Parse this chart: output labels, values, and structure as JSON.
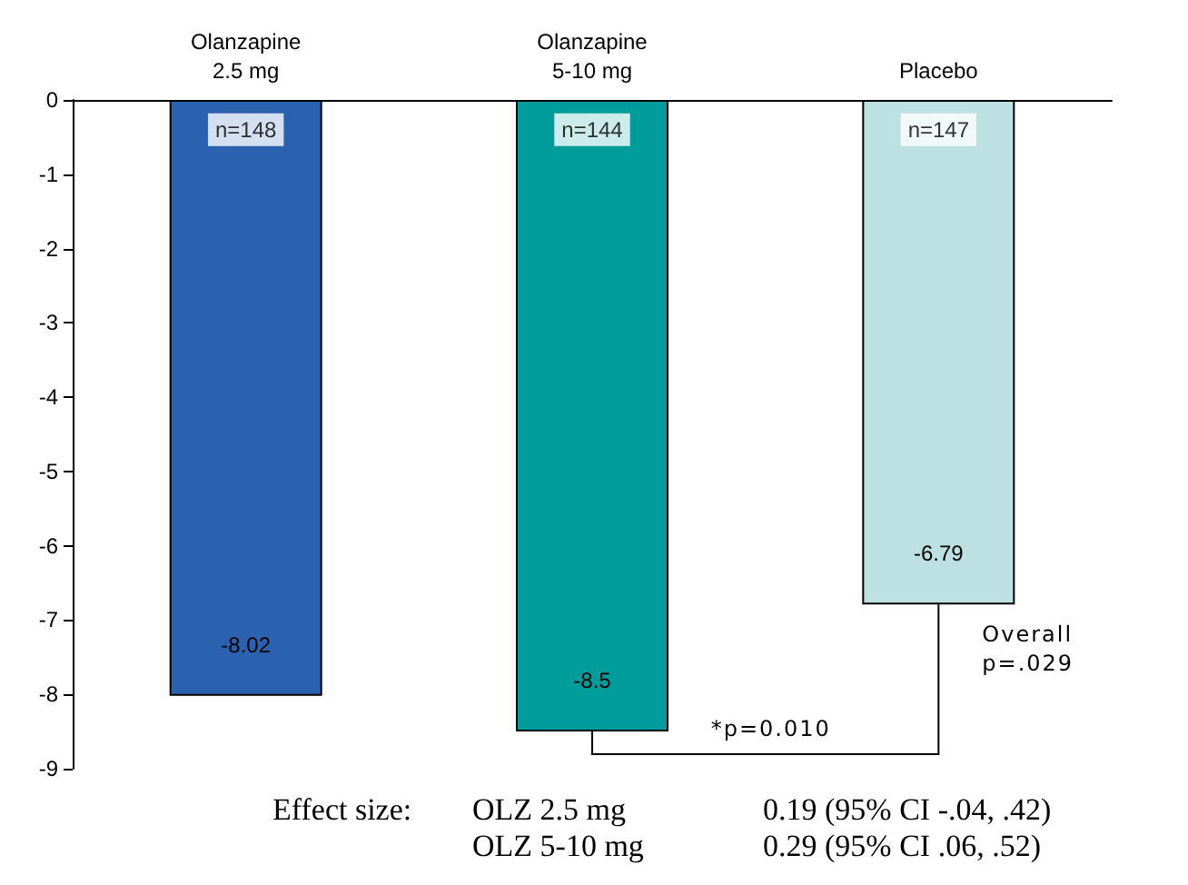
{
  "chart_data": {
    "type": "bar",
    "categories": [
      "Olanzapine\n2.5 mg",
      "Olanzapine\n5-10 mg",
      "Placebo"
    ],
    "values": [
      -8.02,
      -8.5,
      -6.79
    ],
    "colors": [
      "#2b62b0",
      "#009b9b",
      "#bde0e2"
    ],
    "ylim": [
      -9,
      0
    ],
    "yticks": [
      0,
      -1,
      -2,
      -3,
      -4,
      -5,
      -6,
      -7,
      -8,
      -9
    ],
    "grid": false,
    "data_labels": true,
    "annotations": [
      {
        "text": "n=148",
        "x": "Olanzapine\n2.5 mg",
        "y": -0.4
      },
      {
        "text": "n=144",
        "x": "Olanzapine\n5-10 mg",
        "y": -0.4
      },
      {
        "text": "n=147",
        "x": "Placebo",
        "y": -0.4
      },
      "*p=0.010",
      "Overall\np=.029",
      "Effect size:",
      "OLZ 2.5 mg",
      "0.19 (95% CI -.04, .42)",
      "OLZ 5-10 mg",
      "0.29 (95% CI .06, .52)"
    ]
  }
}
